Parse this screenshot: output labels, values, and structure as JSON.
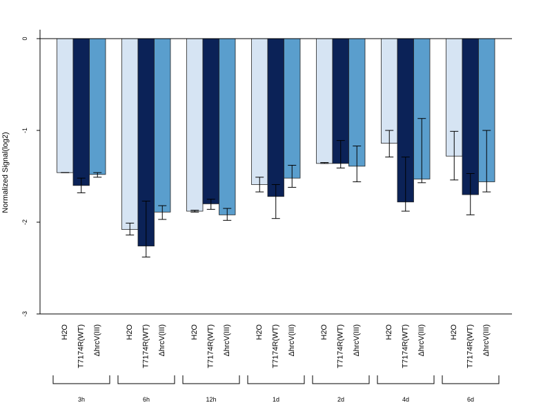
{
  "chart_data": {
    "type": "bar",
    "ylabel": "Normalized Signal(log2)",
    "ylim": [
      -3,
      0.1
    ],
    "yticks": [
      0,
      -1,
      -2,
      -3
    ],
    "groups": [
      "3h",
      "6h",
      "12h",
      "1d",
      "2d",
      "4d",
      "6d"
    ],
    "series": [
      {
        "name": "H2O",
        "color": "#d6e4f3",
        "values": [
          -1.46,
          -2.08,
          -1.88,
          -1.59,
          -1.36,
          -1.14,
          -1.28
        ],
        "err": [
          [
            -1.46,
            -1.46
          ],
          [
            -2.14,
            -2.01
          ],
          [
            -1.89,
            -1.87
          ],
          [
            -1.67,
            -1.51
          ],
          [
            -1.36,
            -1.35
          ],
          [
            -1.29,
            -1.0
          ],
          [
            -1.54,
            -1.01
          ]
        ]
      },
      {
        "name": "T7174R(WT)",
        "color": "#0b2257",
        "values": [
          -1.6,
          -2.26,
          -1.8,
          -1.72,
          -1.36,
          -1.78,
          -1.7
        ],
        "err": [
          [
            -1.68,
            -1.52
          ],
          [
            -2.38,
            -1.77
          ],
          [
            -1.86,
            -1.75
          ],
          [
            -1.96,
            -1.59
          ],
          [
            -1.41,
            -1.11
          ],
          [
            -1.88,
            -1.29
          ],
          [
            -1.92,
            -1.47
          ]
        ]
      },
      {
        "name": "ΔhrcV(III)",
        "color": "#5a9ecd",
        "values": [
          -1.48,
          -1.89,
          -1.92,
          -1.52,
          -1.39,
          -1.53,
          -1.56
        ],
        "err": [
          [
            -1.51,
            -1.46
          ],
          [
            -1.97,
            -1.82
          ],
          [
            -1.98,
            -1.85
          ],
          [
            -1.62,
            -1.38
          ],
          [
            -1.56,
            -1.17
          ],
          [
            -1.57,
            -0.87
          ],
          [
            -1.67,
            -1.0
          ]
        ]
      }
    ],
    "grid": false,
    "legend": "none"
  }
}
